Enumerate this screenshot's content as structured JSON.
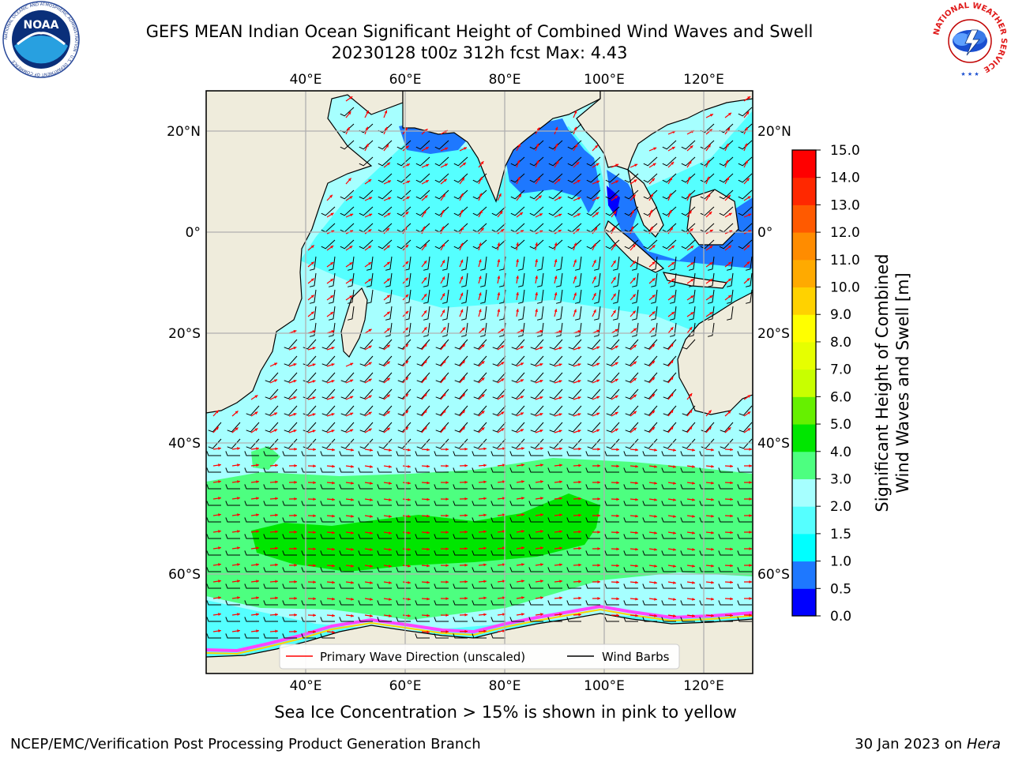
{
  "header": {
    "title_line1": "GEFS MEAN Indian Ocean Significant Height of Combined Wind Waves and Swell",
    "title_line2": "20230128 t00z 312h fcst    Max: 4.43",
    "noaa_logo_text": "NOAA",
    "noaa_ring_text": "NATIONAL OCEANIC AND ATMOSPHERIC ADMINISTRATION · U.S. DEPARTMENT OF COMMERCE",
    "nws_ring_text": "NATIONAL WEATHER SERVICE"
  },
  "map": {
    "lon_ticks": [
      "40°E",
      "60°E",
      "80°E",
      "100°E",
      "120°E"
    ],
    "lat_ticks_left": [
      "20°N",
      "0°",
      "20°S",
      "40°S",
      "60°S"
    ],
    "lat_ticks_right": [
      "20°N",
      "0°",
      "20°S",
      "40°S",
      "60°S"
    ],
    "legend": {
      "wave_direction": "Primary Wave Direction (unscaled)",
      "wind_barbs": "Wind Barbs"
    },
    "colors": {
      "land": "#efecdc",
      "ocean_low": "#a6ffff",
      "wave_arrow": "#ff0000",
      "barb": "#000000",
      "sea_ice": "#ff44ff"
    }
  },
  "colorbar": {
    "label_line1": "Significant Height of Combined",
    "label_line2": "Wind Waves and Swell [m]",
    "ticks": [
      "0.0",
      "0.5",
      "1.0",
      "1.5",
      "2.0",
      "3.0",
      "4.0",
      "5.0",
      "6.0",
      "7.0",
      "8.0",
      "9.0",
      "10.0",
      "11.0",
      "12.0",
      "13.0",
      "14.0",
      "15.0"
    ],
    "colors": [
      "#0000ff",
      "#1e78ff",
      "#00ffff",
      "#55ffff",
      "#a6ffff",
      "#4dff80",
      "#00e600",
      "#66f000",
      "#c8ff00",
      "#e6ff00",
      "#ffff00",
      "#ffd200",
      "#ffaa00",
      "#ff8c00",
      "#ff5a00",
      "#ff2800",
      "#ff0000"
    ]
  },
  "footer": {
    "sea_ice_note": "Sea Ice Concentration > 15% is shown in pink to yellow",
    "credit": "NCEP/EMC/Verification Post Processing Product Generation Branch",
    "date": "30 Jan 2023 on",
    "machine": "Hera"
  }
}
